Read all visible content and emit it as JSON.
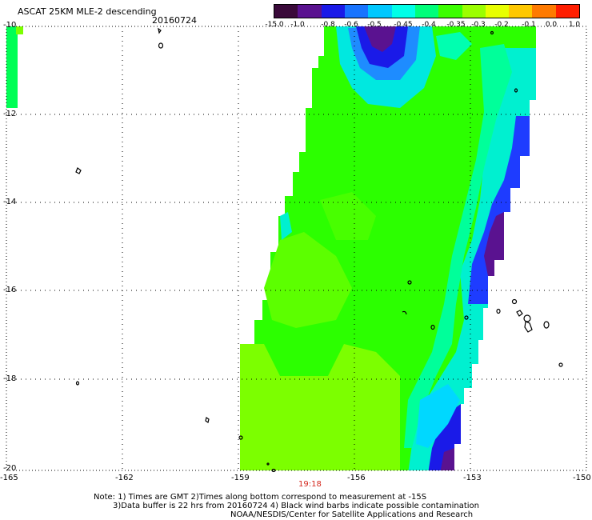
{
  "header": {
    "title": "ASCAT 25KM MLE-2 descending",
    "date": "20160724"
  },
  "colorbar": {
    "ticks": [
      "-15.0",
      "-1.0",
      "-0.8",
      "-0.6",
      "-0.5",
      "-0.45",
      "-0.4",
      "-0.35",
      "-0.3",
      "-0.2",
      "-0.1",
      "0.0",
      "1.0"
    ],
    "colors": [
      "#3a0a3a",
      "#5a1290",
      "#1a1ae8",
      "#1874ff",
      "#00c8ff",
      "#00ffe8",
      "#00ff7a",
      "#3cff00",
      "#9cff00",
      "#e8ff00",
      "#ffc800",
      "#ff7a00",
      "#ff1e00"
    ]
  },
  "axes": {
    "lat_labels": [
      "-10",
      "-12",
      "-14",
      "-16",
      "-18",
      "-20"
    ],
    "lon_labels": [
      "-165",
      "-162",
      "-159",
      "-156",
      "-153",
      "-150"
    ]
  },
  "swath_time": "19:18",
  "notes": [
    "Note: 1) Times are GMT 2)Times along bottom correspond to measurement at -15S",
    "3)Data buffer is 22 hrs from 20160724 4) Black wind barbs indicate possible contamination",
    "NOAA/NESDIS/Center for Satellite Applications and Research"
  ]
}
